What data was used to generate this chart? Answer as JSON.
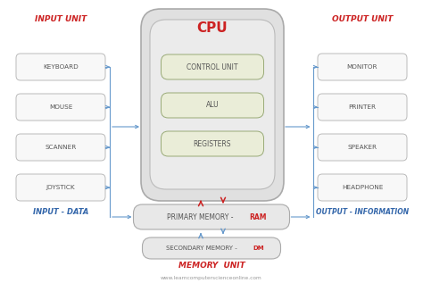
{
  "bg_color": "#ffffff",
  "title": "CPU",
  "input_label": "INPUT UNIT",
  "output_label": "OUTPUT UNIT",
  "input_data_label": "INPUT - DATA",
  "output_info_label": "OUTPUT - INFORMATION",
  "memory_unit_label": "MEMORY  UNIT",
  "watermark": "www.learncomputerscienceonline.com",
  "input_boxes": [
    "KEYBOARD",
    "MOUSE",
    "SCANNER",
    "JOYSTICK"
  ],
  "output_boxes": [
    "MONITOR",
    "PRINTER",
    "SPEAKER",
    "HEADPHONE"
  ],
  "cpu_boxes": [
    "CONTROL UNIT",
    "ALU",
    "REGISTERS"
  ],
  "primary_memory_text": "PRIMARY MEMORY - ",
  "primary_memory_colored": "RAM",
  "secondary_memory_text": "SECONDARY MEMORY - ",
  "secondary_memory_colored": "DM",
  "red_color": "#cc2222",
  "blue_color": "#3366aa",
  "arrow_color": "#6699cc",
  "box_bg": "#f8f8f8",
  "box_edge": "#bbbbbb",
  "cpu_outer_bg": "#e0e0e0",
  "cpu_outer_edge": "#aaaaaa",
  "cpu_inner_bg": "#ebebeb",
  "cpu_inner_edge": "#bbbbbb",
  "cpu_comp_bg": "#eaedd8",
  "cpu_comp_edge": "#99aa77",
  "memory_bg": "#e8e8e8",
  "memory_edge": "#aaaaaa",
  "text_color": "#555555",
  "label_red": "#cc2222",
  "label_blue": "#3366aa"
}
